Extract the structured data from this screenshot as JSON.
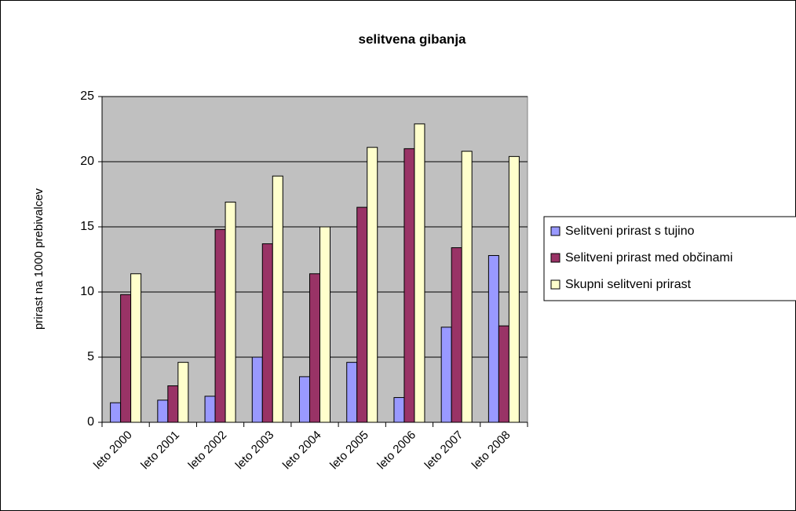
{
  "chart_data": {
    "type": "bar",
    "title": "selitvena gibanja",
    "y_label": "prirast na 1000 prebivalcev",
    "categories": [
      "leto 2000",
      "leto 2001",
      "leto 2002",
      "leto 2003",
      "leto 2004",
      "leto 2005",
      "leto 2006",
      "leto 2007",
      "leto 2008"
    ],
    "series": [
      {
        "name": "Selitveni prirast s tujino",
        "color": "#9999ff",
        "values": [
          1.5,
          1.7,
          2.0,
          5.0,
          3.5,
          4.6,
          1.9,
          7.3,
          12.8
        ]
      },
      {
        "name": "Selitveni prirast med občinami",
        "color": "#993366",
        "values": [
          9.8,
          2.8,
          14.8,
          13.7,
          11.4,
          16.5,
          21.0,
          13.4,
          7.4
        ]
      },
      {
        "name": "Skupni selitveni prirast",
        "color": "#ffffcc",
        "values": [
          11.4,
          4.6,
          16.9,
          18.9,
          15.0,
          21.1,
          22.9,
          20.8,
          20.4
        ]
      }
    ],
    "ylim": [
      0,
      25
    ],
    "yticks": [
      0,
      5,
      10,
      15,
      20,
      25
    ],
    "grid": true,
    "legend": "right",
    "plot_background": "#c0c0c0"
  }
}
